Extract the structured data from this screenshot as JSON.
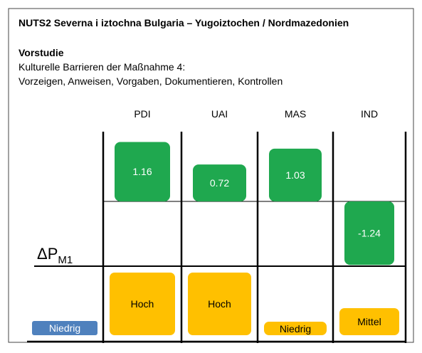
{
  "header": {
    "title": "NUTS2 Severna i iztochna Bulgaria – Yugoiztochen / Nordmazedonien"
  },
  "intro": {
    "heading": "Vorstudie",
    "lines": [
      "Kulturelle Barrieren der Maßnahme 4:",
      "Vorzeigen, Anweisen, Vorgaben, Dokumentieren, Kontrollen"
    ]
  },
  "columns": [
    "PDI",
    "UAI",
    "MAS",
    "IND"
  ],
  "values": [
    1.16,
    0.72,
    1.03,
    -1.24
  ],
  "levels": [
    "Hoch",
    "Hoch",
    "Niedrig",
    "Mittel"
  ],
  "axis_label": {
    "main": "ΔP",
    "sub": "M1"
  },
  "reference_level": "Niedrig"
}
